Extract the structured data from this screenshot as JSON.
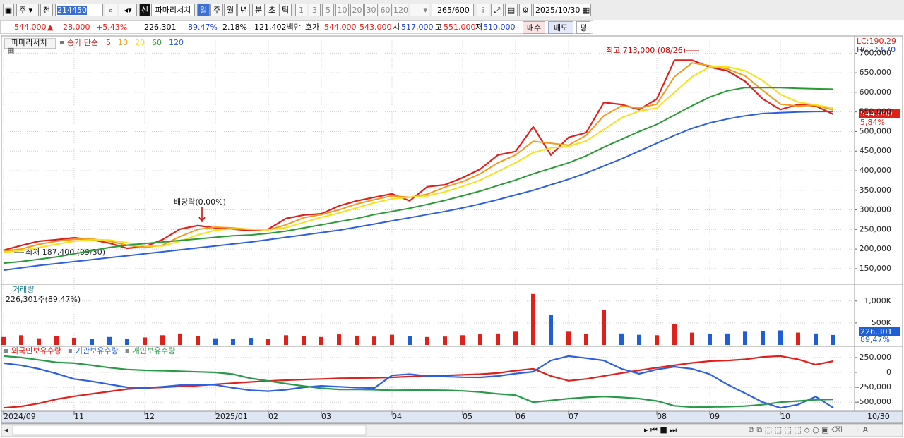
{
  "toolbar": {
    "menu": "주",
    "prev": "전",
    "code": "214450",
    "badge": "신",
    "name": "파마리서치",
    "periods": [
      "일",
      "주",
      "월",
      "년",
      "분",
      "초",
      "틱"
    ],
    "intervals": [
      "1",
      "3",
      "5",
      "10",
      "20",
      "30",
      "60",
      "120"
    ],
    "count": "265",
    "count_max": "/600",
    "date": "2025/10/30"
  },
  "quote": {
    "price": "544,000",
    "change": "28,000",
    "change_pct": "+5.43%",
    "volume": "226,301",
    "volume_pct": "89.47%",
    "turnover": "2.18%",
    "amount": "121,402백만",
    "ask_label": "호가",
    "ask": "544,000",
    "bid": "543,000",
    "open_label": "시",
    "open": "517,000",
    "high_label": "고",
    "high": "551,000",
    "low_label": "저",
    "low": "510,000",
    "buy": "매수",
    "sell": "매도",
    "avg": "평"
  },
  "chart_data": [
    {
      "type": "line",
      "title": "파마리서치",
      "legend_title": "종가 단순",
      "categories": [
        "2024/09",
        null,
        null,
        null,
        "11",
        null,
        null,
        null,
        "12",
        null,
        null,
        null,
        "2025/01",
        null,
        null,
        "02",
        null,
        null,
        "03",
        null,
        null,
        null,
        "04",
        null,
        null,
        null,
        "05",
        null,
        null,
        "06",
        null,
        null,
        "07",
        null,
        null,
        null,
        null,
        "08",
        null,
        null,
        "09",
        null,
        null,
        null,
        "10",
        null,
        null,
        null
      ],
      "series": [
        {
          "name": "5",
          "color": "#e0201b",
          "values": [
            197000,
            209000,
            220000,
            224000,
            229000,
            224000,
            215000,
            202000,
            206000,
            224000,
            251000,
            260000,
            254000,
            251000,
            247000,
            251000,
            278000,
            287000,
            290000,
            310000,
            323000,
            332000,
            341000,
            323000,
            359000,
            364000,
            382000,
            404000,
            440000,
            449000,
            512000,
            440000,
            485000,
            497000,
            574000,
            569000,
            556000,
            583000,
            682000,
            682000,
            664000,
            655000,
            628000,
            583000,
            556000,
            569000,
            565000,
            544000
          ]
        },
        {
          "name": "10",
          "color": "#f39a1e",
          "values": [
            195000,
            200000,
            212000,
            220000,
            225000,
            226000,
            220000,
            210000,
            204000,
            210000,
            232000,
            250000,
            256000,
            254000,
            250000,
            249000,
            262000,
            280000,
            288000,
            300000,
            315000,
            326000,
            336000,
            332000,
            340000,
            358000,
            372000,
            392000,
            420000,
            440000,
            475000,
            470000,
            465000,
            490000,
            540000,
            565000,
            560000,
            570000,
            640000,
            675000,
            668000,
            660000,
            642000,
            605000,
            570000,
            565000,
            567000,
            555000
          ]
        },
        {
          "name": "20",
          "color": "#f5e21a",
          "values": [
            192000,
            196000,
            204000,
            212000,
            220000,
            224000,
            223000,
            216000,
            208000,
            208000,
            220000,
            236000,
            248000,
            252000,
            251000,
            249000,
            255000,
            268000,
            281000,
            292000,
            305000,
            318000,
            328000,
            332000,
            336000,
            346000,
            360000,
            376000,
            398000,
            420000,
            446000,
            458000,
            462000,
            476000,
            505000,
            535000,
            552000,
            560000,
            600000,
            640000,
            665000,
            665000,
            655000,
            630000,
            595000,
            575000,
            568000,
            560000
          ]
        },
        {
          "name": "60",
          "color": "#2a9a35",
          "values": [
            164000,
            168000,
            174000,
            180000,
            188000,
            196000,
            204000,
            210000,
            214000,
            218000,
            222000,
            226000,
            230000,
            234000,
            236000,
            240000,
            246000,
            254000,
            262000,
            270000,
            278000,
            288000,
            296000,
            304000,
            314000,
            324000,
            336000,
            348000,
            362000,
            376000,
            392000,
            406000,
            420000,
            438000,
            460000,
            480000,
            500000,
            518000,
            542000,
            566000,
            588000,
            604000,
            612000,
            612000,
            612000,
            610000,
            609000,
            608000
          ]
        },
        {
          "name": "120",
          "color": "#2d5fe0",
          "values": [
            146000,
            152000,
            158000,
            163000,
            168000,
            173000,
            178000,
            183000,
            188000,
            193000,
            198000,
            203000,
            208000,
            213000,
            218000,
            224000,
            230000,
            236000,
            242000,
            248000,
            256000,
            264000,
            272000,
            280000,
            288000,
            296000,
            305000,
            315000,
            326000,
            338000,
            350000,
            364000,
            378000,
            394000,
            412000,
            430000,
            450000,
            470000,
            490000,
            508000,
            522000,
            532000,
            540000,
            546000,
            548000,
            550000,
            551000,
            551000
          ]
        }
      ],
      "ylim": [
        112000,
        742000
      ],
      "yticks": [
        {
          "value": 150000,
          "label": "150,000"
        },
        {
          "value": 200000,
          "label": "200,000"
        },
        {
          "value": 250000,
          "label": "250,000"
        },
        {
          "value": 300000,
          "label": "300,000"
        },
        {
          "value": 350000,
          "label": "350,000"
        },
        {
          "value": 400000,
          "label": "400,000"
        },
        {
          "value": 450000,
          "label": "450,000"
        },
        {
          "value": 500000,
          "label": "500,000"
        },
        {
          "value": 550000,
          "label": "550,000"
        },
        {
          "value": 600000,
          "label": "600,000"
        },
        {
          "value": 650000,
          "label": "650,000"
        },
        {
          "value": 700000,
          "label": "700,000"
        }
      ],
      "grid": true,
      "high_note": "최고 713,000 (08/26)",
      "low_note": "최저 187,400 (09/30)",
      "dividend_note": "배당락(0,00%)",
      "lc": "LC:190,29",
      "hc": "HC:-23,70",
      "last_price": "544,000",
      "last_change": "5,84%",
      "end_label": "10/30"
    },
    {
      "type": "bar",
      "title": "거래량",
      "subtitle": "226,301주(89,47%)",
      "values": [
        180000,
        220000,
        150000,
        200000,
        160000,
        140000,
        180000,
        130000,
        170000,
        220000,
        260000,
        200000,
        150000,
        140000,
        160000,
        130000,
        220000,
        200000,
        180000,
        240000,
        210000,
        190000,
        230000,
        200000,
        180000,
        190000,
        220000,
        240000,
        260000,
        300000,
        1160000,
        680000,
        300000,
        250000,
        790000,
        260000,
        230000,
        220000,
        470000,
        280000,
        250000,
        260000,
        300000,
        320000,
        330000,
        280000,
        260000,
        226301
      ],
      "up_color": "#e0201b",
      "down_color": "#1f5fd6",
      "ylim": [
        0,
        1350000
      ],
      "yticks": [
        {
          "value": 500000,
          "label": "500K"
        },
        {
          "value": 1000000,
          "label": "1,000K"
        }
      ],
      "grid": true,
      "last_label": "226,301",
      "last_pct": "89,47%"
    },
    {
      "type": "line",
      "series": [
        {
          "name": "외국인보유수량",
          "color": "#e0201b",
          "values": [
            -595000,
            -570000,
            -520000,
            -450000,
            -400000,
            -360000,
            -320000,
            -280000,
            -262000,
            -250000,
            -235000,
            -220000,
            -200000,
            -180000,
            -160000,
            -143000,
            -130000,
            -118000,
            -110000,
            -100000,
            -95000,
            -90000,
            -83000,
            -70000,
            -60000,
            -50000,
            -40000,
            -30000,
            -10000,
            30000,
            60000,
            -60000,
            -140000,
            -110000,
            -60000,
            -10000,
            36000,
            80000,
            120000,
            160000,
            190000,
            200000,
            220000,
            260000,
            274000,
            220000,
            130000,
            190000
          ]
        },
        {
          "name": "기관보유수량",
          "color": "#2d5fe0",
          "values": [
            155000,
            120000,
            60000,
            -20000,
            -110000,
            -150000,
            -200000,
            -250000,
            -262000,
            -240000,
            -215000,
            -205000,
            -210000,
            -260000,
            -300000,
            -315000,
            -290000,
            -250000,
            -226000,
            -240000,
            -255000,
            -262000,
            -50000,
            -30000,
            -60000,
            -70000,
            -80000,
            -83000,
            -60000,
            -20000,
            12000,
            200000,
            274000,
            240000,
            200000,
            60000,
            -24000,
            50000,
            95000,
            60000,
            -30000,
            -202000,
            -350000,
            -500000,
            -595000,
            -540000,
            -405000,
            -595000
          ]
        },
        {
          "name": "개인보유수량",
          "color": "#2a9a4a",
          "values": [
            274000,
            250000,
            210000,
            170000,
            155000,
            120000,
            80000,
            50000,
            36000,
            30000,
            20000,
            10000,
            0,
            -30000,
            -100000,
            -143000,
            -190000,
            -230000,
            -265000,
            -286000,
            -286000,
            -290000,
            -300000,
            -298000,
            -298000,
            -300000,
            -310000,
            -330000,
            -360000,
            -381000,
            -500000,
            -470000,
            -440000,
            -420000,
            -405000,
            -420000,
            -440000,
            -480000,
            -560000,
            -583000,
            -580000,
            -575000,
            -565000,
            -540000,
            -500000,
            -480000,
            -460000,
            -452000
          ]
        }
      ],
      "ylim": [
        -640000,
        415000
      ],
      "yticks": [
        {
          "value": 250000,
          "label": "250,000"
        },
        0,
        {
          "value": -250000,
          "label": "-250,000"
        },
        {
          "value": -500000,
          "label": "-500,000"
        }
      ],
      "grid": true
    }
  ]
}
